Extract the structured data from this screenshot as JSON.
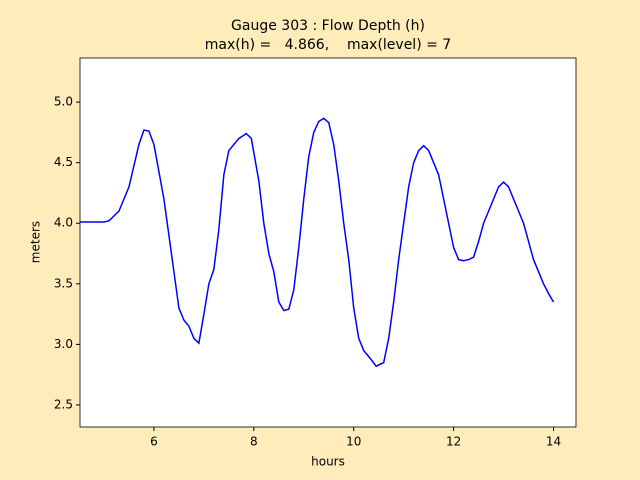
{
  "chart_data": {
    "type": "line",
    "title": "Gauge 303 : Flow Depth (h)",
    "subtitle": "max(h) =   4.866,    max(level) = 7",
    "x_label": "hours",
    "y_label": "meters",
    "xlim": [
      4.52,
      14.45
    ],
    "ylim": [
      2.318,
      5.364
    ],
    "xticks": [
      6,
      8,
      10,
      12,
      14
    ],
    "yticks": [
      {
        "value": 2.5,
        "label": "2.5"
      },
      {
        "value": 3,
        "label": "3.0"
      },
      {
        "value": 3.5,
        "label": "3.5"
      },
      {
        "value": 4,
        "label": "4.0"
      },
      {
        "value": 4.5,
        "label": "4.5"
      },
      {
        "value": 5,
        "label": "5.0"
      }
    ],
    "grid": false,
    "x": [
      4.52,
      5.0,
      5.1,
      5.3,
      5.5,
      5.7,
      5.8,
      5.9,
      6.0,
      6.2,
      6.4,
      6.5,
      6.6,
      6.7,
      6.8,
      6.9,
      7.0,
      7.1,
      7.2,
      7.3,
      7.4,
      7.5,
      7.6,
      7.7,
      7.85,
      7.95,
      8.1,
      8.2,
      8.3,
      8.4,
      8.5,
      8.6,
      8.7,
      8.8,
      8.9,
      9.0,
      9.1,
      9.2,
      9.3,
      9.4,
      9.5,
      9.6,
      9.7,
      9.8,
      9.9,
      10.0,
      10.1,
      10.2,
      10.3,
      10.45,
      10.6,
      10.7,
      10.8,
      10.9,
      11.0,
      11.1,
      11.2,
      11.3,
      11.4,
      11.5,
      11.6,
      11.7,
      11.8,
      11.9,
      12.0,
      12.1,
      12.2,
      12.3,
      12.4,
      12.5,
      12.6,
      12.7,
      12.8,
      12.9,
      13.0,
      13.1,
      13.2,
      13.3,
      13.4,
      13.5,
      13.6,
      13.7,
      13.8,
      13.9,
      14.0
    ],
    "series": [
      {
        "name": "h",
        "color": "#0000ff",
        "values": [
          4.01,
          4.01,
          4.02,
          4.1,
          4.3,
          4.65,
          4.77,
          4.76,
          4.65,
          4.2,
          3.6,
          3.3,
          3.2,
          3.15,
          3.05,
          3.01,
          3.25,
          3.5,
          3.62,
          3.95,
          4.4,
          4.6,
          4.65,
          4.7,
          4.74,
          4.7,
          4.35,
          4.0,
          3.75,
          3.6,
          3.35,
          3.28,
          3.29,
          3.45,
          3.8,
          4.2,
          4.55,
          4.75,
          4.84,
          4.866,
          4.83,
          4.65,
          4.35,
          4.0,
          3.7,
          3.3,
          3.05,
          2.95,
          2.9,
          2.82,
          2.85,
          3.05,
          3.35,
          3.7,
          4.0,
          4.3,
          4.5,
          4.6,
          4.64,
          4.6,
          4.5,
          4.4,
          4.2,
          4.0,
          3.8,
          3.7,
          3.69,
          3.7,
          3.72,
          3.85,
          4.0,
          4.1,
          4.2,
          4.3,
          4.34,
          4.3,
          4.2,
          4.1,
          4.0,
          3.85,
          3.7,
          3.6,
          3.5,
          3.42,
          3.35
        ]
      }
    ]
  }
}
